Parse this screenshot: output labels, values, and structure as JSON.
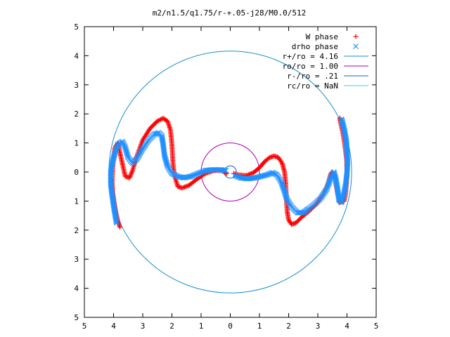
{
  "chart_data": {
    "type": "scatter",
    "title": "m2/n1.5/q1.75/r-+.05-j28/M0.0/512",
    "xlabel": "",
    "ylabel": "",
    "xlim": [
      -5,
      5
    ],
    "ylim": [
      -5,
      5
    ],
    "x_ticks": [
      -5,
      -4,
      -3,
      -2,
      -1,
      0,
      1,
      2,
      3,
      4,
      5
    ],
    "y_ticks": [
      -5,
      -4,
      -3,
      -2,
      -1,
      0,
      1,
      2,
      3,
      4,
      5
    ],
    "x_tick_labels": [
      "5",
      "4",
      "3",
      "2",
      "1",
      "0",
      "1",
      "2",
      "3",
      "4",
      "5"
    ],
    "y_tick_labels": [
      "5",
      "4",
      "3",
      "2",
      "1",
      "0",
      "1",
      "2",
      "3",
      "4",
      "5"
    ],
    "grid": false,
    "legend_position": "top-right",
    "series": [
      {
        "name": "W phase",
        "marker": "plus",
        "color": "#ff0000",
        "points": [
          [
            0.12,
            -0.05
          ],
          [
            0.3,
            -0.1
          ],
          [
            0.55,
            -0.12
          ],
          [
            0.8,
            -0.02
          ],
          [
            1.0,
            0.15
          ],
          [
            1.2,
            0.38
          ],
          [
            1.35,
            0.5
          ],
          [
            1.5,
            0.55
          ],
          [
            1.65,
            0.5
          ],
          [
            1.78,
            0.3
          ],
          [
            1.86,
            0.0
          ],
          [
            1.9,
            -0.4
          ],
          [
            1.92,
            -0.9
          ],
          [
            1.95,
            -1.35
          ],
          [
            2.0,
            -1.65
          ],
          [
            2.1,
            -1.8
          ],
          [
            2.25,
            -1.75
          ],
          [
            2.45,
            -1.55
          ],
          [
            2.7,
            -1.35
          ],
          [
            2.95,
            -1.1
          ],
          [
            3.2,
            -0.75
          ],
          [
            3.35,
            -0.4
          ],
          [
            3.45,
            -0.05
          ],
          [
            3.5,
            0.0
          ],
          [
            3.58,
            -0.1
          ],
          [
            3.62,
            -0.4
          ],
          [
            3.68,
            -0.75
          ],
          [
            3.75,
            -1.05
          ],
          [
            3.9,
            -1.0
          ],
          [
            3.95,
            -0.75
          ],
          [
            3.98,
            -0.4
          ],
          [
            4.0,
            0.0
          ],
          [
            3.99,
            0.4
          ],
          [
            3.95,
            0.75
          ],
          [
            3.9,
            1.1
          ],
          [
            3.85,
            1.4
          ],
          [
            3.78,
            1.7
          ],
          [
            3.75,
            1.9
          ],
          [
            -0.12,
            -0.05
          ],
          [
            -0.3,
            0.05
          ],
          [
            -0.55,
            0.05
          ],
          [
            -0.85,
            -0.05
          ],
          [
            -1.15,
            -0.25
          ],
          [
            -1.4,
            -0.45
          ],
          [
            -1.65,
            -0.55
          ],
          [
            -1.8,
            -0.5
          ],
          [
            -1.92,
            -0.1
          ],
          [
            -1.97,
            0.4
          ],
          [
            -2.0,
            0.95
          ],
          [
            -2.05,
            1.45
          ],
          [
            -2.15,
            1.75
          ],
          [
            -2.3,
            1.85
          ],
          [
            -2.5,
            1.75
          ],
          [
            -2.75,
            1.5
          ],
          [
            -3.0,
            1.1
          ],
          [
            -3.2,
            0.55
          ],
          [
            -3.35,
            0.05
          ],
          [
            -3.45,
            -0.2
          ],
          [
            -3.6,
            -0.15
          ],
          [
            -3.7,
            0.3
          ],
          [
            -3.8,
            0.75
          ],
          [
            -3.85,
            1.0
          ],
          [
            -3.95,
            0.85
          ],
          [
            -4.0,
            0.5
          ],
          [
            -4.03,
            0.1
          ],
          [
            -4.05,
            -0.3
          ],
          [
            -4.03,
            -0.7
          ],
          [
            -3.98,
            -1.05
          ],
          [
            -3.92,
            -1.4
          ],
          [
            -3.85,
            -1.7
          ],
          [
            -3.78,
            -1.9
          ]
        ]
      },
      {
        "name": "drho phase",
        "marker": "cross",
        "color": "#1e90ff",
        "points": [
          [
            0.15,
            -0.12
          ],
          [
            0.35,
            -0.2
          ],
          [
            0.6,
            -0.23
          ],
          [
            0.85,
            -0.2
          ],
          [
            1.05,
            -0.15
          ],
          [
            1.25,
            -0.1
          ],
          [
            1.45,
            -0.02
          ],
          [
            1.6,
            -0.1
          ],
          [
            1.75,
            -0.35
          ],
          [
            1.85,
            -0.65
          ],
          [
            1.95,
            -0.95
          ],
          [
            2.1,
            -1.2
          ],
          [
            2.3,
            -1.4
          ],
          [
            2.5,
            -1.4
          ],
          [
            2.7,
            -1.25
          ],
          [
            2.9,
            -1.1
          ],
          [
            3.1,
            -0.9
          ],
          [
            3.3,
            -0.6
          ],
          [
            3.45,
            -0.2
          ],
          [
            3.55,
            0.0
          ],
          [
            3.62,
            -0.25
          ],
          [
            3.68,
            -0.6
          ],
          [
            3.72,
            -0.95
          ],
          [
            3.8,
            -1.05
          ],
          [
            3.88,
            -0.8
          ],
          [
            3.95,
            -0.45
          ],
          [
            4.0,
            -0.05
          ],
          [
            4.02,
            0.35
          ],
          [
            4.0,
            0.7
          ],
          [
            3.98,
            1.05
          ],
          [
            3.92,
            1.4
          ],
          [
            3.85,
            1.7
          ],
          [
            3.8,
            1.85
          ],
          [
            -0.15,
            0.05
          ],
          [
            -0.35,
            0.08
          ],
          [
            -0.6,
            0.08
          ],
          [
            -0.85,
            0.05
          ],
          [
            -1.1,
            -0.05
          ],
          [
            -1.35,
            -0.15
          ],
          [
            -1.6,
            -0.2
          ],
          [
            -1.8,
            -0.15
          ],
          [
            -2.0,
            -0.05
          ],
          [
            -2.15,
            0.2
          ],
          [
            -2.25,
            0.55
          ],
          [
            -2.3,
            0.95
          ],
          [
            -2.35,
            1.25
          ],
          [
            -2.45,
            1.35
          ],
          [
            -2.6,
            1.3
          ],
          [
            -2.8,
            1.1
          ],
          [
            -3.0,
            0.8
          ],
          [
            -3.2,
            0.45
          ],
          [
            -3.35,
            0.3
          ],
          [
            -3.5,
            0.5
          ],
          [
            -3.6,
            0.85
          ],
          [
            -3.7,
            1.05
          ],
          [
            -3.85,
            0.95
          ],
          [
            -3.95,
            0.65
          ],
          [
            -4.05,
            0.3
          ],
          [
            -4.1,
            -0.05
          ],
          [
            -4.1,
            -0.4
          ],
          [
            -4.05,
            -0.8
          ],
          [
            -4.0,
            -1.15
          ],
          [
            -3.95,
            -1.45
          ],
          [
            -3.9,
            -1.75
          ]
        ]
      },
      {
        "name": "r+/ro = 4.16",
        "type": "circle",
        "radius": 4.16,
        "color": "#1a8fd0"
      },
      {
        "name": "ro/ro = 1.00",
        "type": "circle",
        "radius": 1.0,
        "color": "#b000b0"
      },
      {
        "name": "r-/ro = .21",
        "type": "circle",
        "radius": 0.21,
        "color": "#1060d0"
      },
      {
        "name": "rc/ro = NaN",
        "type": "circle",
        "radius": null,
        "color": "#40c8e8"
      }
    ]
  }
}
